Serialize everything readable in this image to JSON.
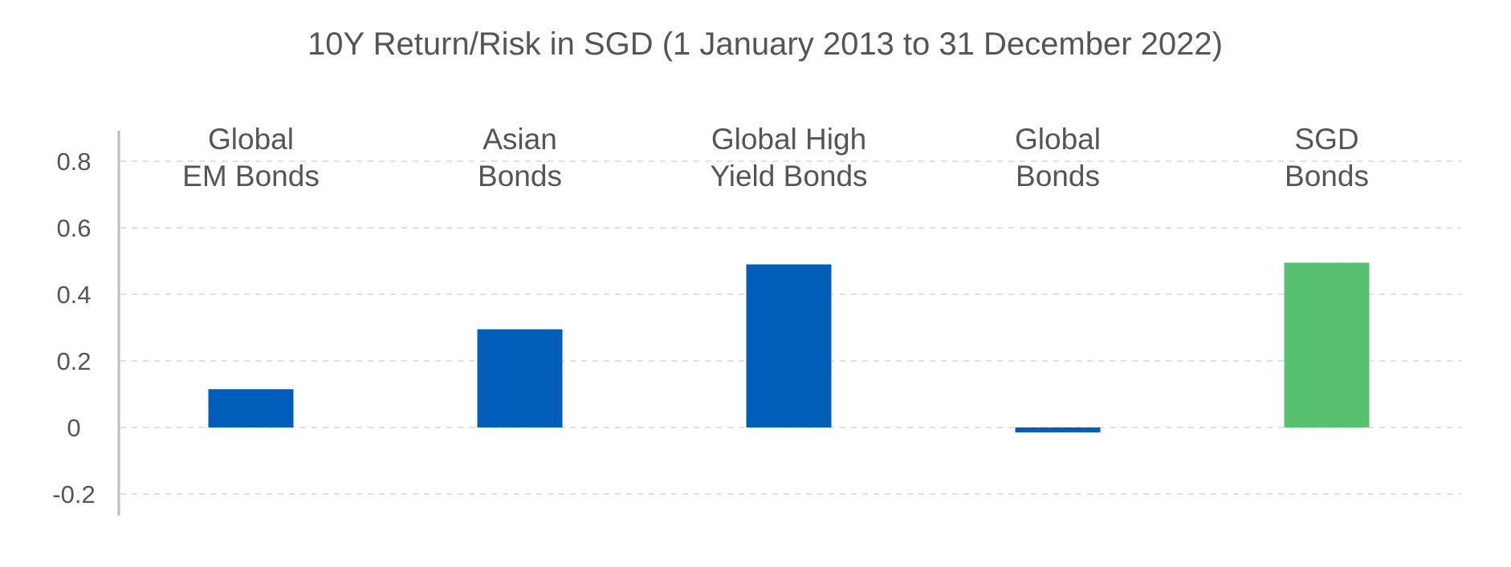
{
  "chart_data": {
    "type": "bar",
    "title": "10Y Return/Risk in SGD (1 January 2013 to 31 December 2022)",
    "xlabel": "",
    "ylabel": "",
    "ylim": [
      -0.25,
      0.9
    ],
    "yticks": [
      0.8,
      0.6,
      0.4,
      0.2,
      0,
      -0.2
    ],
    "ytick_labels": [
      "0.8",
      "0.6",
      "0.4",
      "0.2",
      "0",
      "-0.2"
    ],
    "grid": true,
    "legend": "none",
    "categories": [
      [
        "Global",
        "EM Bonds"
      ],
      [
        "Asian",
        "Bonds"
      ],
      [
        "Global High",
        "Yield Bonds"
      ],
      [
        "Global",
        "Bonds"
      ],
      [
        "SGD",
        "Bonds"
      ]
    ],
    "values": [
      0.115,
      0.295,
      0.49,
      -0.015,
      0.495
    ],
    "bar_colors": [
      "#005EB8",
      "#005EB8",
      "#005EB8",
      "#005EB8",
      "#57C171"
    ]
  }
}
